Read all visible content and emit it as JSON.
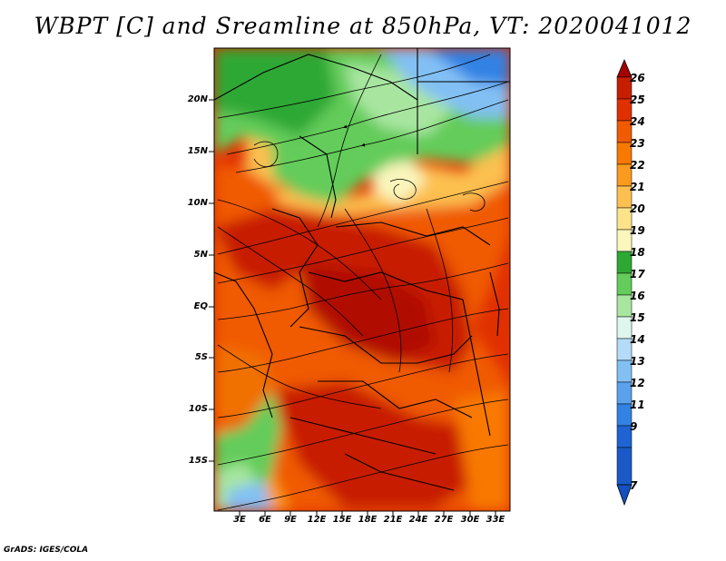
{
  "title": "WBPT [C] and Sreamline at 850hPa, VT: 2020041012",
  "credit": "GrADS: IGES/COLA",
  "lat_labels": [
    "20N",
    "15N",
    "10N",
    "5N",
    "EQ",
    "5S",
    "10S",
    "15S"
  ],
  "lon_labels": [
    "3E",
    "6E",
    "9E",
    "12E",
    "15E",
    "18E",
    "21E",
    "24E",
    "27E",
    "30E",
    "33E"
  ],
  "colorbar": {
    "labels": [
      "26",
      "25",
      "24",
      "23",
      "22",
      "21",
      "20",
      "19",
      "18",
      "17",
      "16",
      "15",
      "14",
      "13",
      "12",
      "11",
      "9",
      "7"
    ],
    "colors": [
      "#a50000",
      "#c81e00",
      "#e03000",
      "#f05a00",
      "#f87800",
      "#fa9a1e",
      "#fcc050",
      "#fde48a",
      "#faf6bc",
      "#2ea834",
      "#64cc5a",
      "#a8e6a0",
      "#dff6ee",
      "#b4dcf8",
      "#82c0f4",
      "#5aa2ec",
      "#3282e4",
      "#1e64d2",
      "#1450c0"
    ]
  },
  "map": {
    "projection": "lat-lon",
    "lon_range": [
      0,
      35
    ],
    "lat_range": [
      -20,
      25
    ],
    "field": "WBPT",
    "level": "850hPa",
    "valid_time": "2020041012"
  }
}
